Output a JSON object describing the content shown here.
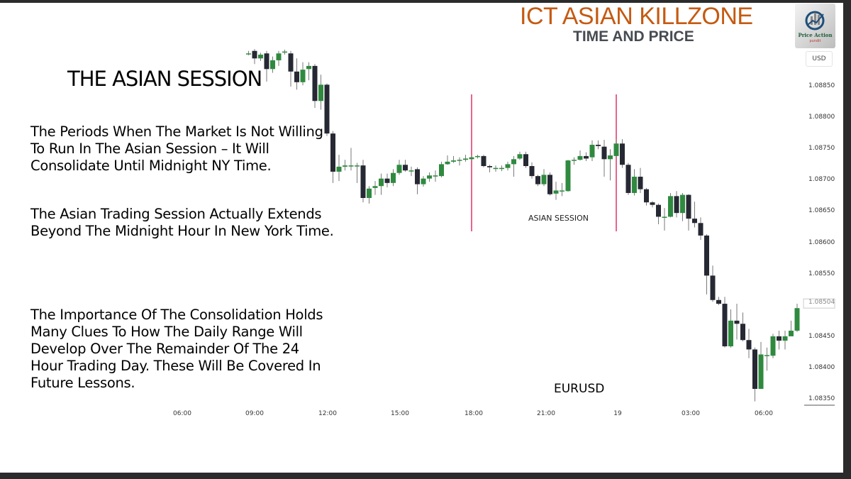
{
  "header": {
    "title": "ICT ASIAN KILLZONE",
    "subtitle": "TIME AND PRICE"
  },
  "logo": {
    "line1": "Price Action",
    "line2": "pundit"
  },
  "currency_button": "USD",
  "slide_text": {
    "heading": "THE ASIAN SESSION",
    "paragraphs": [
      "The Periods When The Market Is Not Willing To Run In The Asian Session – It Will Consolidate Until Midnight NY Time.",
      "The Asian Trading Session Actually Extends Beyond The Midnight Hour In New York Time.",
      "The Importance Of The Consolidation Holds Many Clues To How The Daily Range Will Develop Over The Remainder Of The 24 Hour Trading Day. These Will Be Covered In Future Lessons."
    ]
  },
  "chart_data": {
    "type": "candlestick",
    "symbol": "EURUSD",
    "interval": "15m",
    "annotation": "ASIAN SESSION",
    "session_markers": [
      "18:00",
      "00:00"
    ],
    "colors": {
      "up": "#2f8a3f",
      "down": "#262833",
      "session_line": "#e0306a"
    },
    "y_ticks": [
      "1.08850",
      "1.08800",
      "1.08750",
      "1.08700",
      "1.08650",
      "1.08600",
      "1.08550",
      "1.08450",
      "1.08400",
      "1.08350"
    ],
    "current_price": "1.08504",
    "x_ticks": [
      "06:00",
      "09:00",
      "12:00",
      "15:00",
      "18:00",
      "21:00",
      "19",
      "03:00",
      "06:00"
    ],
    "ylim": [
      1.0834,
      1.0893
    ],
    "candles_columns": [
      "time",
      "open",
      "high",
      "low",
      "close"
    ],
    "candles": [
      [
        "08:45",
        1.08903,
        1.08907,
        1.089,
        1.08903
      ],
      [
        "09:00",
        1.08907,
        1.0891,
        1.08886,
        1.08895
      ],
      [
        "09:15",
        1.08895,
        1.08904,
        1.08891,
        1.08901
      ],
      [
        "09:30",
        1.08903,
        1.08907,
        1.08858,
        1.08878
      ],
      [
        "09:45",
        1.08878,
        1.08898,
        1.08872,
        1.08892
      ],
      [
        "10:00",
        1.08892,
        1.08907,
        1.08883,
        1.08903
      ],
      [
        "10:15",
        1.08906,
        1.08909,
        1.08901,
        1.08906
      ],
      [
        "10:30",
        1.08903,
        1.08907,
        1.0885,
        1.08874
      ],
      [
        "10:45",
        1.08874,
        1.08895,
        1.08845,
        1.08857
      ],
      [
        "11:00",
        1.08857,
        1.08889,
        1.08852,
        1.08877
      ],
      [
        "11:15",
        1.08878,
        1.08889,
        1.0886,
        1.08883
      ],
      [
        "11:30",
        1.08883,
        1.08886,
        1.08816,
        1.08827
      ],
      [
        "11:45",
        1.08827,
        1.08869,
        1.08813,
        1.08853
      ],
      [
        "12:00",
        1.08853,
        1.08855,
        1.08771,
        1.08775
      ],
      [
        "12:15",
        1.08775,
        1.08779,
        1.08696,
        1.08714
      ],
      [
        "12:30",
        1.08714,
        1.08741,
        1.08699,
        1.08722
      ],
      [
        "12:45",
        1.08722,
        1.08733,
        1.08716,
        1.08724
      ],
      [
        "13:00",
        1.08724,
        1.08752,
        1.08716,
        1.08724
      ],
      [
        "13:15",
        1.08723,
        1.08728,
        1.08696,
        1.08724
      ],
      [
        "13:30",
        1.08724,
        1.08733,
        1.08665,
        1.08672
      ],
      [
        "13:45",
        1.08672,
        1.08691,
        1.08663,
        1.08687
      ],
      [
        "14:00",
        1.08688,
        1.08699,
        1.08677,
        1.08691
      ],
      [
        "14:15",
        1.08691,
        1.08711,
        1.08677,
        1.08703
      ],
      [
        "14:30",
        1.08703,
        1.08711,
        1.08689,
        1.08696
      ],
      [
        "14:45",
        1.08696,
        1.08718,
        1.08691,
        1.08712
      ],
      [
        "15:00",
        1.08712,
        1.08733,
        1.08709,
        1.08725
      ],
      [
        "15:15",
        1.08725,
        1.08733,
        1.08714,
        1.08716
      ],
      [
        "15:30",
        1.08716,
        1.08722,
        1.08707,
        1.08716
      ],
      [
        "15:45",
        1.08718,
        1.08721,
        1.08678,
        1.08694
      ],
      [
        "16:00",
        1.08694,
        1.08707,
        1.0869,
        1.08703
      ],
      [
        "16:15",
        1.08703,
        1.08713,
        1.08698,
        1.08708
      ],
      [
        "16:30",
        1.08708,
        1.08716,
        1.08698,
        1.08708
      ],
      [
        "16:45",
        1.08707,
        1.0873,
        1.08705,
        1.08726
      ],
      [
        "17:00",
        1.08726,
        1.0874,
        1.08725,
        1.0873
      ],
      [
        "17:15",
        1.0873,
        1.08739,
        1.08728,
        1.08732
      ],
      [
        "17:30",
        1.08733,
        1.08737,
        1.08724,
        1.08733
      ],
      [
        "17:45",
        1.08733,
        1.08741,
        1.0873,
        1.08735
      ],
      [
        "18:00",
        1.08734,
        1.0874,
        1.08732,
        1.08737
      ],
      [
        "18:15",
        1.08739,
        1.08741,
        1.08735,
        1.08739
      ],
      [
        "18:30",
        1.08739,
        1.08741,
        1.08721,
        1.08723
      ],
      [
        "18:45",
        1.08723,
        1.08725,
        1.08713,
        1.08721
      ],
      [
        "19:00",
        1.0872,
        1.08724,
        1.08714,
        1.0872
      ],
      [
        "19:15",
        1.0872,
        1.08724,
        1.08715,
        1.0872
      ],
      [
        "19:30",
        1.0872,
        1.0873,
        1.08716,
        1.08726
      ],
      [
        "19:45",
        1.08726,
        1.08739,
        1.08706,
        1.08734
      ],
      [
        "20:00",
        1.08735,
        1.08746,
        1.08733,
        1.08742
      ],
      [
        "20:15",
        1.08742,
        1.08746,
        1.0872,
        1.08723
      ],
      [
        "20:30",
        1.08723,
        1.08729,
        1.08703,
        1.08707
      ],
      [
        "20:45",
        1.08707,
        1.08709,
        1.08691,
        1.08694
      ],
      [
        "21:00",
        1.08694,
        1.08718,
        1.08691,
        1.08709
      ],
      [
        "21:15",
        1.08709,
        1.08713,
        1.08676,
        1.08678
      ],
      [
        "21:30",
        1.08679,
        1.08698,
        1.08669,
        1.08684
      ],
      [
        "21:45",
        1.08684,
        1.08696,
        1.08675,
        1.08684
      ],
      [
        "22:00",
        1.08683,
        1.08733,
        1.08682,
        1.08732
      ],
      [
        "22:15",
        1.08733,
        1.08737,
        1.08725,
        1.08733
      ],
      [
        "22:30",
        1.08733,
        1.08748,
        1.08732,
        1.08739
      ],
      [
        "22:45",
        1.08739,
        1.08745,
        1.08731,
        1.08735
      ],
      [
        "23:00",
        1.08737,
        1.08764,
        1.08731,
        1.08757
      ],
      [
        "23:15",
        1.08757,
        1.08764,
        1.0875,
        1.08755
      ],
      [
        "23:30",
        1.08754,
        1.08765,
        1.08706,
        1.08734
      ],
      [
        "23:45",
        1.08734,
        1.0875,
        1.087,
        1.0874
      ],
      [
        "00:00",
        1.08739,
        1.08766,
        1.08737,
        1.08759
      ],
      [
        "00:15",
        1.08759,
        1.08766,
        1.0872,
        1.08725
      ],
      [
        "00:30",
        1.08725,
        1.08728,
        1.08677,
        1.0868
      ],
      [
        "00:45",
        1.0868,
        1.08718,
        1.08676,
        1.08706
      ],
      [
        "01:00",
        1.08706,
        1.0872,
        1.0868,
        1.08686
      ],
      [
        "01:15",
        1.08686,
        1.08688,
        1.0866,
        1.08665
      ],
      [
        "01:30",
        1.08665,
        1.08667,
        1.08657,
        1.08661
      ],
      [
        "01:45",
        1.08661,
        1.08663,
        1.0863,
        1.08642
      ],
      [
        "02:00",
        1.08642,
        1.08656,
        1.0862,
        1.08642
      ],
      [
        "02:15",
        1.08642,
        1.0868,
        1.08641,
        1.08675
      ],
      [
        "02:30",
        1.08675,
        1.08683,
        1.08641,
        1.08648
      ],
      [
        "02:45",
        1.08648,
        1.0868,
        1.08635,
        1.08677
      ],
      [
        "03:00",
        1.08677,
        1.08678,
        1.0862,
        1.08639
      ],
      [
        "03:15",
        1.08639,
        1.08666,
        1.08625,
        1.08632
      ],
      [
        "03:30",
        1.08632,
        1.08641,
        1.08605,
        1.08612
      ],
      [
        "03:45",
        1.08612,
        1.08614,
        1.08518,
        1.08548
      ],
      [
        "04:00",
        1.08548,
        1.08564,
        1.08506,
        1.08509
      ],
      [
        "04:15",
        1.08509,
        1.08514,
        1.08501,
        1.08503
      ],
      [
        "04:30",
        1.08503,
        1.08514,
        1.08433,
        1.08435
      ],
      [
        "04:45",
        1.08435,
        1.08494,
        1.08433,
        1.08476
      ],
      [
        "05:00",
        1.08476,
        1.08503,
        1.08446,
        1.08471
      ],
      [
        "05:15",
        1.08471,
        1.08489,
        1.08443,
        1.08445
      ],
      [
        "05:30",
        1.08445,
        1.08463,
        1.08416,
        1.0843
      ],
      [
        "05:45",
        1.0843,
        1.08433,
        1.08347,
        1.08367
      ],
      [
        "06:00",
        1.08367,
        1.08442,
        1.08367,
        1.08422
      ],
      [
        "06:15",
        1.08421,
        1.08433,
        1.08396,
        1.08421
      ],
      [
        "06:30",
        1.0842,
        1.08455,
        1.08416,
        1.08451
      ],
      [
        "06:45",
        1.08451,
        1.0846,
        1.0843,
        1.08444
      ],
      [
        "07:00",
        1.08444,
        1.0846,
        1.0843,
        1.08451
      ],
      [
        "07:15",
        1.08451,
        1.08476,
        1.08453,
        1.0846
      ],
      [
        "07:30",
        1.0846,
        1.08503,
        1.08458,
        1.08496
      ]
    ]
  }
}
